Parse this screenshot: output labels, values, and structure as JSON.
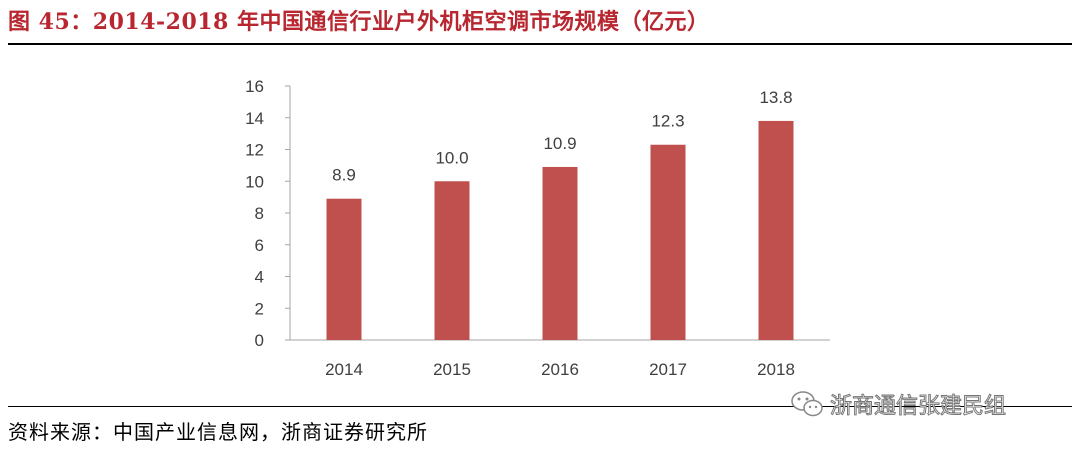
{
  "header": {
    "title": "图 45：2014-2018 年中国通信行业户外机柜空调市场规模（亿元）"
  },
  "footer": {
    "source": "资料来源：中国产业信息网，浙商证券研究所"
  },
  "watermark": {
    "text": "浙商通信张建民组",
    "icon": "wechat-icon"
  },
  "colors": {
    "title": "#b8262f",
    "bar": "#c0504d",
    "axis": "#a6a6a6",
    "text": "#404040"
  },
  "chart_data": {
    "type": "bar",
    "categories": [
      "2014",
      "2015",
      "2016",
      "2017",
      "2018"
    ],
    "values": [
      8.9,
      10.0,
      10.9,
      12.3,
      13.8
    ],
    "value_labels": [
      "8.9",
      "10.0",
      "10.9",
      "12.3",
      "13.8"
    ],
    "title": "",
    "xlabel": "",
    "ylabel": "",
    "ylim": [
      0,
      16
    ],
    "yticks": [
      "0",
      "2",
      "4",
      "6",
      "8",
      "10",
      "12",
      "14",
      "16"
    ],
    "grid": false,
    "legend": "none"
  }
}
